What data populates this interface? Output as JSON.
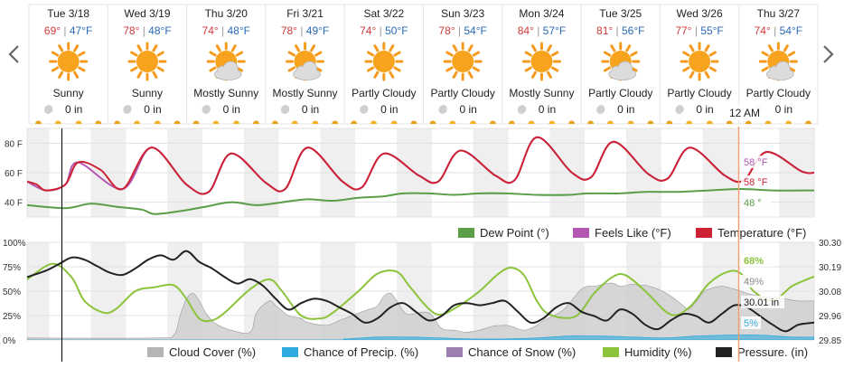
{
  "nav": {
    "prev_icon": "chevron-left-icon",
    "next_icon": "chevron-right-icon"
  },
  "days": [
    {
      "date": "Tue 3/18",
      "high": "69°",
      "low": "47°F",
      "icon": "sun",
      "condition": "Sunny",
      "precip": "0 in"
    },
    {
      "date": "Wed 3/19",
      "high": "78°",
      "low": "48°F",
      "icon": "sun",
      "condition": "Sunny",
      "precip": "0 in"
    },
    {
      "date": "Thu 3/20",
      "high": "74°",
      "low": "48°F",
      "icon": "sun-cloud",
      "condition": "Mostly Sunny",
      "precip": "0 in"
    },
    {
      "date": "Fri 3/21",
      "high": "78°",
      "low": "49°F",
      "icon": "sun-cloud",
      "condition": "Mostly Sunny",
      "precip": "0 in"
    },
    {
      "date": "Sat 3/22",
      "high": "74°",
      "low": "50°F",
      "icon": "sun",
      "condition": "Partly Cloudy",
      "precip": "0 in"
    },
    {
      "date": "Sun 3/23",
      "high": "78°",
      "low": "54°F",
      "icon": "sun",
      "condition": "Partly Cloudy",
      "precip": "0 in"
    },
    {
      "date": "Mon 3/24",
      "high": "84°",
      "low": "57°F",
      "icon": "sun",
      "condition": "Mostly Sunny",
      "precip": "0 in"
    },
    {
      "date": "Tue 3/25",
      "high": "81°",
      "low": "56°F",
      "icon": "sun-cloud",
      "condition": "Partly Cloudy",
      "precip": "0 in"
    },
    {
      "date": "Wed 3/26",
      "high": "77°",
      "low": "55°F",
      "icon": "sun",
      "condition": "Partly Cloudy",
      "precip": "0 in"
    },
    {
      "date": "Thu 3/27",
      "high": "74°",
      "low": "54°F",
      "icon": "sun-cloud",
      "condition": "Partly Cloudy",
      "precip": "0 in"
    }
  ],
  "colors": {
    "high": "#d23a3a",
    "low": "#2a6ab8",
    "temperature": "#cc2233",
    "feels_like": "#b257b2",
    "dew_point": "#5a9e48",
    "cloud": "#b5b5b5",
    "precip": "#2eaadc",
    "snow": "#9a7fb0",
    "humidity": "#8bc33a",
    "pressure": "#222222",
    "cursor": "#f0a070"
  },
  "time_label": "12 AM",
  "temp_chart": {
    "y_ticks": [
      "80 F",
      "60 F",
      "40 F"
    ],
    "readout": {
      "feels_like": "58 °F",
      "temperature": "58 °F",
      "dew_point": "48 °"
    },
    "legend": [
      "Dew Point (°)",
      "Feels Like (°F)",
      "Temperature (°F)"
    ]
  },
  "lower_chart": {
    "left_ticks": [
      "100%",
      "75%",
      "50%",
      "25%",
      "0%"
    ],
    "right_ticks": [
      "30.30",
      "30.19",
      "30.08",
      "29.96",
      "29.85"
    ],
    "readout": {
      "humidity": "68%",
      "cloud": "49%",
      "pressure": "30.01 in",
      "precip": "5%"
    },
    "legend": [
      "Cloud Cover (%)",
      "Chance of Precip. (%)",
      "Chance of Snow (%)",
      "Humidity (%)",
      "Pressure. (in)"
    ]
  },
  "chart_data": [
    {
      "type": "line",
      "x_unit": "hour from Tue 3/18 12 AM",
      "ylim": [
        30,
        90
      ],
      "temp_extrema": [
        [
          0,
          54
        ],
        [
          3,
          52
        ],
        [
          6,
          48
        ],
        [
          12,
          52
        ],
        [
          16,
          67
        ],
        [
          23,
          62
        ],
        [
          30,
          49
        ],
        [
          39,
          77
        ],
        [
          50,
          52
        ],
        [
          57,
          47
        ],
        [
          64,
          73
        ],
        [
          75,
          53
        ],
        [
          81,
          49
        ],
        [
          88,
          77
        ],
        [
          99,
          54
        ],
        [
          105,
          50
        ],
        [
          112,
          73
        ],
        [
          123,
          58
        ],
        [
          129,
          54
        ],
        [
          136,
          75
        ],
        [
          147,
          58
        ],
        [
          153,
          55
        ],
        [
          160,
          84
        ],
        [
          171,
          60
        ],
        [
          177,
          57
        ],
        [
          184,
          81
        ],
        [
          195,
          59
        ],
        [
          201,
          56
        ],
        [
          208,
          77
        ],
        [
          219,
          58
        ],
        [
          225,
          55
        ],
        [
          232,
          74
        ],
        [
          243,
          61
        ],
        [
          247,
          60
        ]
      ],
      "feels_extrema": [
        [
          0,
          54
        ],
        [
          6,
          48
        ],
        [
          12,
          52
        ],
        [
          16,
          67
        ],
        [
          30,
          49
        ],
        [
          39,
          77
        ],
        [
          50,
          52
        ],
        [
          57,
          47
        ],
        [
          64,
          73
        ],
        [
          75,
          53
        ],
        [
          81,
          49
        ],
        [
          88,
          77
        ],
        [
          99,
          54
        ],
        [
          105,
          50
        ],
        [
          112,
          73
        ],
        [
          123,
          58
        ],
        [
          129,
          54
        ],
        [
          136,
          75
        ],
        [
          147,
          58
        ],
        [
          153,
          55
        ],
        [
          160,
          84
        ],
        [
          171,
          60
        ],
        [
          177,
          57
        ],
        [
          184,
          81
        ],
        [
          195,
          59
        ],
        [
          201,
          56
        ],
        [
          208,
          77
        ],
        [
          219,
          58
        ],
        [
          225,
          55
        ],
        [
          232,
          74
        ],
        [
          243,
          61
        ],
        [
          247,
          60
        ]
      ],
      "dew_extrema": [
        [
          0,
          38
        ],
        [
          12,
          36
        ],
        [
          20,
          39
        ],
        [
          28,
          37
        ],
        [
          36,
          35
        ],
        [
          40,
          32
        ],
        [
          48,
          34
        ],
        [
          56,
          37
        ],
        [
          64,
          40
        ],
        [
          72,
          38
        ],
        [
          80,
          40
        ],
        [
          88,
          42
        ],
        [
          96,
          41
        ],
        [
          104,
          43
        ],
        [
          112,
          44
        ],
        [
          118,
          46
        ],
        [
          126,
          46
        ],
        [
          134,
          45
        ],
        [
          142,
          46
        ],
        [
          150,
          46
        ],
        [
          160,
          45
        ],
        [
          170,
          45
        ],
        [
          176,
          46
        ],
        [
          186,
          46
        ],
        [
          194,
          47
        ],
        [
          204,
          47
        ],
        [
          214,
          48
        ],
        [
          224,
          49
        ],
        [
          234,
          48
        ],
        [
          247,
          48
        ]
      ]
    },
    {
      "type": "line",
      "x_unit": "hour from Tue 3/18 12 AM",
      "ylim": [
        0,
        100
      ],
      "pressure_ylim": [
        29.85,
        30.3
      ],
      "humidity": [
        [
          0,
          62
        ],
        [
          8,
          78
        ],
        [
          14,
          64
        ],
        [
          18,
          40
        ],
        [
          24,
          28
        ],
        [
          28,
          32
        ],
        [
          34,
          50
        ],
        [
          40,
          54
        ],
        [
          46,
          56
        ],
        [
          50,
          42
        ],
        [
          54,
          22
        ],
        [
          58,
          20
        ],
        [
          62,
          28
        ],
        [
          70,
          52
        ],
        [
          76,
          62
        ],
        [
          80,
          50
        ],
        [
          86,
          25
        ],
        [
          92,
          22
        ],
        [
          96,
          28
        ],
        [
          104,
          50
        ],
        [
          110,
          68
        ],
        [
          116,
          70
        ],
        [
          120,
          55
        ],
        [
          126,
          32
        ],
        [
          130,
          26
        ],
        [
          136,
          36
        ],
        [
          142,
          50
        ],
        [
          148,
          68
        ],
        [
          152,
          74
        ],
        [
          156,
          66
        ],
        [
          160,
          40
        ],
        [
          164,
          26
        ],
        [
          172,
          24
        ],
        [
          178,
          48
        ],
        [
          184,
          65
        ],
        [
          188,
          66
        ],
        [
          194,
          50
        ],
        [
          202,
          26
        ],
        [
          208,
          34
        ],
        [
          214,
          58
        ],
        [
          220,
          70
        ],
        [
          224,
          68
        ],
        [
          228,
          50
        ],
        [
          234,
          40
        ],
        [
          240,
          55
        ],
        [
          247,
          65
        ]
      ],
      "cloud": [
        [
          0,
          2
        ],
        [
          40,
          2
        ],
        [
          46,
          5
        ],
        [
          48,
          25
        ],
        [
          50,
          42
        ],
        [
          52,
          48
        ],
        [
          54,
          40
        ],
        [
          56,
          28
        ],
        [
          58,
          20
        ],
        [
          60,
          15
        ],
        [
          64,
          10
        ],
        [
          70,
          8
        ],
        [
          72,
          28
        ],
        [
          76,
          40
        ],
        [
          78,
          35
        ],
        [
          80,
          30
        ],
        [
          82,
          25
        ],
        [
          86,
          22
        ],
        [
          88,
          18
        ],
        [
          94,
          15
        ],
        [
          98,
          20
        ],
        [
          102,
          25
        ],
        [
          106,
          30
        ],
        [
          108,
          32
        ],
        [
          110,
          35
        ],
        [
          112,
          45
        ],
        [
          114,
          48
        ],
        [
          116,
          40
        ],
        [
          118,
          30
        ],
        [
          120,
          26
        ],
        [
          126,
          28
        ],
        [
          130,
          12
        ],
        [
          134,
          10
        ],
        [
          138,
          8
        ],
        [
          142,
          10
        ],
        [
          146,
          14
        ],
        [
          150,
          15
        ],
        [
          152,
          14
        ],
        [
          156,
          10
        ],
        [
          160,
          15
        ],
        [
          162,
          20
        ],
        [
          168,
          30
        ],
        [
          172,
          45
        ],
        [
          174,
          52
        ],
        [
          176,
          55
        ],
        [
          178,
          55
        ],
        [
          182,
          58
        ],
        [
          184,
          58
        ],
        [
          186,
          55
        ],
        [
          188,
          56
        ],
        [
          190,
          57
        ],
        [
          192,
          56
        ],
        [
          194,
          56
        ],
        [
          198,
          52
        ],
        [
          202,
          45
        ],
        [
          206,
          35
        ],
        [
          208,
          32
        ],
        [
          212,
          48
        ],
        [
          214,
          52
        ],
        [
          218,
          55
        ],
        [
          222,
          52
        ],
        [
          226,
          48
        ],
        [
          230,
          45
        ],
        [
          234,
          44
        ],
        [
          238,
          42
        ],
        [
          242,
          40
        ],
        [
          247,
          40
        ]
      ],
      "precip": [
        [
          0,
          0
        ],
        [
          90,
          0
        ],
        [
          100,
          1
        ],
        [
          110,
          3
        ],
        [
          120,
          3
        ],
        [
          130,
          2
        ],
        [
          140,
          1
        ],
        [
          150,
          1
        ],
        [
          160,
          2
        ],
        [
          170,
          4
        ],
        [
          180,
          4
        ],
        [
          190,
          3
        ],
        [
          200,
          2
        ],
        [
          210,
          4
        ],
        [
          220,
          5
        ],
        [
          230,
          5
        ],
        [
          240,
          3
        ],
        [
          247,
          3
        ]
      ],
      "pressure": [
        [
          0,
          30.14
        ],
        [
          6,
          30.17
        ],
        [
          10,
          30.2
        ],
        [
          14,
          30.23
        ],
        [
          18,
          30.22
        ],
        [
          22,
          30.19
        ],
        [
          26,
          30.16
        ],
        [
          30,
          30.15
        ],
        [
          34,
          30.18
        ],
        [
          38,
          30.22
        ],
        [
          42,
          30.24
        ],
        [
          46,
          30.22
        ],
        [
          50,
          30.26
        ],
        [
          54,
          30.21
        ],
        [
          58,
          30.18
        ],
        [
          62,
          30.14
        ],
        [
          66,
          30.11
        ],
        [
          70,
          30.13
        ],
        [
          74,
          30.1
        ],
        [
          78,
          30.04
        ],
        [
          82,
          29.99
        ],
        [
          86,
          30.02
        ],
        [
          90,
          30.04
        ],
        [
          94,
          30.03
        ],
        [
          98,
          30.0
        ],
        [
          102,
          29.97
        ],
        [
          106,
          29.93
        ],
        [
          110,
          29.95
        ],
        [
          114,
          30.0
        ],
        [
          118,
          30.02
        ],
        [
          122,
          29.98
        ],
        [
          126,
          29.94
        ],
        [
          130,
          29.96
        ],
        [
          134,
          30.01
        ],
        [
          138,
          30.02
        ],
        [
          142,
          30.01
        ],
        [
          146,
          30.02
        ],
        [
          150,
          30.03
        ],
        [
          154,
          29.98
        ],
        [
          158,
          29.93
        ],
        [
          162,
          29.95
        ],
        [
          166,
          30.0
        ],
        [
          170,
          30.02
        ],
        [
          174,
          29.98
        ],
        [
          178,
          29.96
        ],
        [
          182,
          29.94
        ],
        [
          186,
          29.99
        ],
        [
          190,
          29.97
        ],
        [
          194,
          29.92
        ],
        [
          198,
          29.9
        ],
        [
          202,
          29.94
        ],
        [
          206,
          29.97
        ],
        [
          210,
          29.96
        ],
        [
          214,
          29.93
        ],
        [
          218,
          29.97
        ],
        [
          222,
          30.01
        ],
        [
          226,
          30.0
        ],
        [
          230,
          29.96
        ],
        [
          234,
          29.92
        ],
        [
          238,
          29.89
        ],
        [
          242,
          29.92
        ],
        [
          247,
          29.93
        ]
      ]
    }
  ]
}
